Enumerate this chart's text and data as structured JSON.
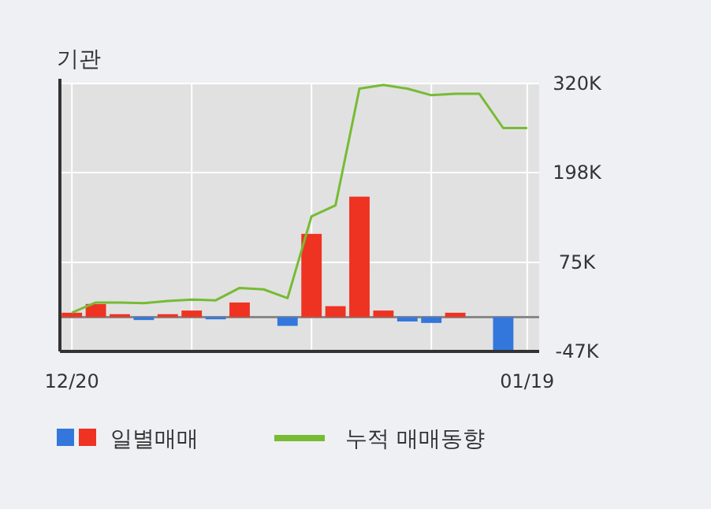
{
  "chart_data": {
    "type": "bar",
    "title": "기관",
    "categories": [
      "12/20",
      null,
      null,
      null,
      null,
      null,
      null,
      null,
      null,
      null,
      null,
      null,
      null,
      null,
      null,
      null,
      null,
      null,
      null,
      "01/19"
    ],
    "series": [
      {
        "name": "일별매매",
        "colors": [
          "#ee3322",
          "#ee3322",
          "#ee3322",
          "#3377dd",
          "#ee3322",
          "#ee3322",
          "#3377dd",
          "#ee3322",
          "#ee3322",
          "#3377dd",
          "#ee3322",
          "#ee3322",
          "#ee3322",
          "#ee3322",
          "#3377dd",
          "#3377dd",
          "#ee3322",
          "#ee3322",
          "#3377dd",
          "#ee3322"
        ],
        "values": [
          6000,
          18000,
          4000,
          -4000,
          4000,
          9000,
          -3000,
          20000,
          0,
          -12000,
          114000,
          15000,
          165000,
          9000,
          -6000,
          -8000,
          6000,
          0,
          -45000,
          0
        ]
      },
      {
        "name": "누적 매매동향",
        "type": "line",
        "color": "#77bb33",
        "values": [
          6000,
          20000,
          20000,
          19000,
          22000,
          24000,
          23000,
          40000,
          38000,
          26000,
          138000,
          153000,
          313000,
          318000,
          313000,
          304000,
          306000,
          306000,
          259000,
          259000
        ]
      }
    ],
    "ylim": [
      -47000,
      320000
    ],
    "yticks": [
      {
        "value": -47000,
        "label": "-47K"
      },
      {
        "value": 75000,
        "label": "75K"
      },
      {
        "value": 198000,
        "label": "198K"
      },
      {
        "value": 320000,
        "label": "320K"
      }
    ],
    "ref_lines": [
      {
        "axis": "y",
        "value": 0,
        "color": "#888888"
      }
    ],
    "grid": true,
    "legend": "bottom"
  }
}
